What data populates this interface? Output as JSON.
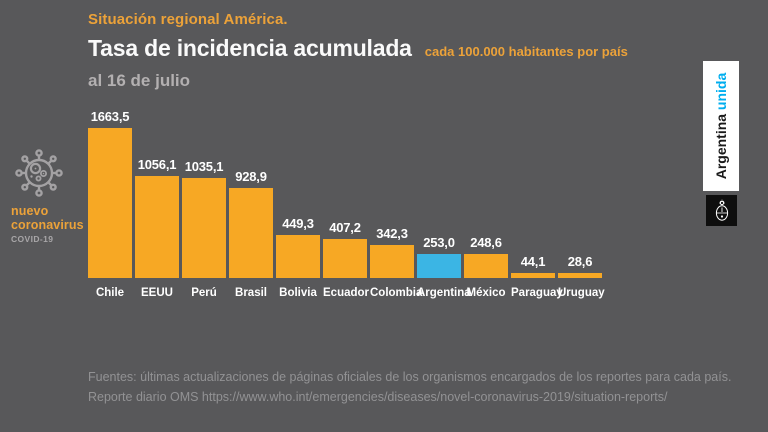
{
  "background": "#58585A",
  "header": {
    "kicker": "Situación regional América.",
    "title": "Tasa de incidencia acumulada",
    "title_suffix": "cada 100.000 habitantes por país",
    "date_line": "al 16 de julio"
  },
  "brand": {
    "name_line1": "nuevo",
    "name_line2": "coronavirus",
    "sub": "COVID-19",
    "icon": "coronavirus-icon",
    "icon_color": "#A3A1A3"
  },
  "chart_data": {
    "type": "bar",
    "title": "Tasa de incidencia acumulada",
    "subtitle": "cada 100.000 habitantes por país al 16 de julio",
    "categories": [
      "Chile",
      "EEUU",
      "Perú",
      "Brasil",
      "Bolivia",
      "Ecuador",
      "Colombia",
      "Argentina",
      "México",
      "Paraguay",
      "Uruguay"
    ],
    "values": [
      1663.5,
      1056.1,
      1035.1,
      928.9,
      449.3,
      407.2,
      342.3,
      253.0,
      248.6,
      44.1,
      28.6
    ],
    "value_labels": [
      "1663,5",
      "1056,1",
      "1035,1",
      "928,9",
      "449,3",
      "407,2",
      "342,3",
      "253,0",
      "248,6",
      "44,1",
      "28,6"
    ],
    "bar_color": "#F7A824",
    "highlight_color": "#3BB5E4",
    "highlight_index": 7,
    "xlabel": "",
    "ylabel": "",
    "ylim": [
      0,
      1750
    ],
    "grid": false,
    "legend": null,
    "value_label_position": "above-bar",
    "baseline_axis_line": false
  },
  "footer": {
    "line1": "Fuentes: últimas actualizaciones de páginas oficiales de los organismos encargados de los reportes para cada país.",
    "line2": "Reporte diario OMS https://www.who.int/emergencies/diseases/novel-coronavirus-2019/situation-reports/"
  },
  "banner": {
    "word_black": "Argentina ",
    "word_cyan": "unida",
    "cyan": "#00AEEF",
    "emblem": "argentina-coat-of-arms-icon"
  },
  "colors": {
    "accent_orange_text": "#ECA239",
    "muted_gray_text": "#B3B0B1",
    "footer_gray_text": "#929294",
    "white_text": "#FAFAFA"
  }
}
